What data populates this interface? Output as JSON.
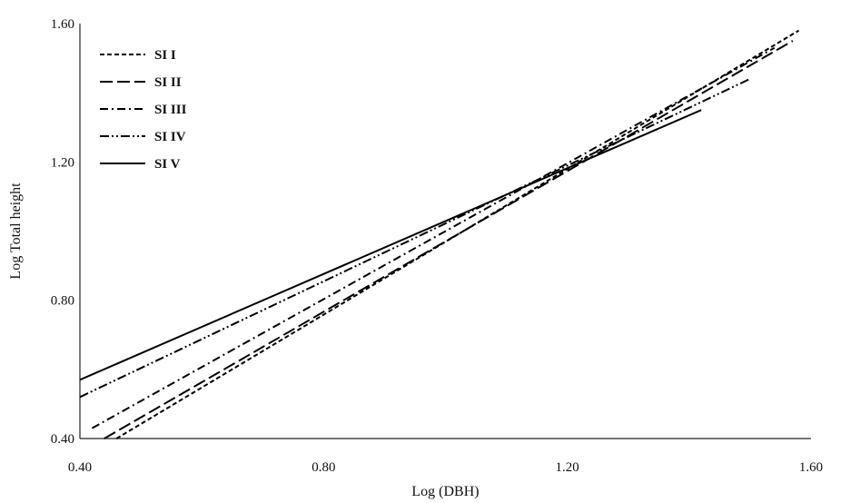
{
  "chart_data": {
    "type": "line",
    "title": "",
    "xlabel": "Log (DBH)",
    "ylabel": "Log Total height",
    "xlim": [
      0.4,
      1.6
    ],
    "ylim": [
      0.4,
      1.6
    ],
    "xticks": [
      "0.40",
      "0.80",
      "1.20",
      "1.60"
    ],
    "yticks": [
      "0.40",
      "0.80",
      "1.20",
      "1.60"
    ],
    "grid": false,
    "legend_position": "top-left",
    "series": [
      {
        "name": "SI I",
        "dash": "short-dash",
        "x": [
          0.46,
          1.58
        ],
        "y": [
          0.4,
          1.58
        ]
      },
      {
        "name": "SI II",
        "dash": "long-dash",
        "x": [
          0.44,
          1.57
        ],
        "y": [
          0.4,
          1.55
        ]
      },
      {
        "name": "SI III",
        "dash": "dash-dot",
        "x": [
          0.42,
          1.54
        ],
        "y": [
          0.43,
          1.53
        ]
      },
      {
        "name": "SI IV",
        "dash": "dash-dot-dot",
        "x": [
          0.4,
          1.5
        ],
        "y": [
          0.52,
          1.44
        ]
      },
      {
        "name": "SI V",
        "dash": "solid",
        "x": [
          0.4,
          1.42
        ],
        "y": [
          0.57,
          1.35
        ]
      }
    ]
  }
}
